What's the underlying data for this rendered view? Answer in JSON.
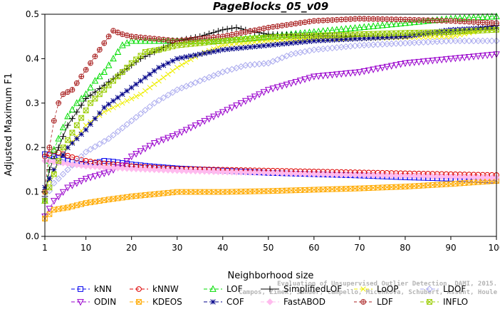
{
  "chart_data": {
    "type": "line",
    "title": "PageBlocks_05_v09",
    "xlabel": "Neighborhood size",
    "ylabel": "Adjusted Maximum F1",
    "xlim": [
      1,
      100
    ],
    "ylim": [
      0,
      0.5
    ],
    "xticks": [
      1,
      10,
      20,
      30,
      40,
      50,
      60,
      70,
      80,
      90,
      100
    ],
    "yticks": [
      "0.0",
      "0.1",
      "0.2",
      "0.3",
      "0.4",
      "0.5"
    ],
    "grid": false,
    "legend_position": "bottom",
    "watermark": [
      "Campos, Zimek, Sander, Campello, Micenkova, Schubert, Assent, Houle",
      "Evaluation of Unsupervised Outlier Detection. DAMI, 2015."
    ],
    "series": [
      {
        "name": "kNN",
        "color": "#0000ee",
        "marker": "square",
        "dash": "5,3",
        "points": [
          [
            1,
            0.185
          ],
          [
            3,
            0.18
          ],
          [
            5,
            0.172
          ],
          [
            8,
            0.165
          ],
          [
            10,
            0.162
          ],
          [
            12,
            0.165
          ],
          [
            14,
            0.17
          ],
          [
            16,
            0.168
          ],
          [
            20,
            0.162
          ],
          [
            25,
            0.157
          ],
          [
            30,
            0.153
          ],
          [
            40,
            0.148
          ],
          [
            50,
            0.143
          ],
          [
            60,
            0.14
          ],
          [
            70,
            0.137
          ],
          [
            80,
            0.133
          ],
          [
            90,
            0.13
          ],
          [
            100,
            0.125
          ]
        ]
      },
      {
        "name": "kNNW",
        "color": "#dd0000",
        "marker": "circle",
        "dash": "5,3",
        "points": [
          [
            1,
            0.18
          ],
          [
            3,
            0.192
          ],
          [
            5,
            0.185
          ],
          [
            8,
            0.175
          ],
          [
            10,
            0.17
          ],
          [
            13,
            0.165
          ],
          [
            16,
            0.162
          ],
          [
            20,
            0.158
          ],
          [
            25,
            0.155
          ],
          [
            30,
            0.152
          ],
          [
            40,
            0.15
          ],
          [
            50,
            0.148
          ],
          [
            60,
            0.146
          ],
          [
            70,
            0.144
          ],
          [
            80,
            0.142
          ],
          [
            90,
            0.14
          ],
          [
            100,
            0.138
          ]
        ]
      },
      {
        "name": "LOF",
        "color": "#00dd00",
        "marker": "triangle",
        "dash": "5,3",
        "points": [
          [
            1,
            0.08
          ],
          [
            2,
            0.17
          ],
          [
            4,
            0.22
          ],
          [
            6,
            0.27
          ],
          [
            8,
            0.3
          ],
          [
            10,
            0.32
          ],
          [
            12,
            0.35
          ],
          [
            14,
            0.37
          ],
          [
            16,
            0.4
          ],
          [
            18,
            0.43
          ],
          [
            20,
            0.44
          ],
          [
            25,
            0.44
          ],
          [
            30,
            0.44
          ],
          [
            40,
            0.44
          ],
          [
            50,
            0.45
          ],
          [
            60,
            0.46
          ],
          [
            70,
            0.47
          ],
          [
            80,
            0.48
          ],
          [
            90,
            0.49
          ],
          [
            100,
            0.495
          ]
        ]
      },
      {
        "name": "SimplifiedLOF",
        "color": "#000000",
        "marker": "plus",
        "dash": "",
        "points": [
          [
            1,
            0.09
          ],
          [
            2,
            0.15
          ],
          [
            4,
            0.2
          ],
          [
            6,
            0.25
          ],
          [
            8,
            0.28
          ],
          [
            10,
            0.31
          ],
          [
            14,
            0.34
          ],
          [
            18,
            0.37
          ],
          [
            22,
            0.4
          ],
          [
            26,
            0.42
          ],
          [
            30,
            0.44
          ],
          [
            35,
            0.45
          ],
          [
            40,
            0.465
          ],
          [
            43,
            0.47
          ],
          [
            46,
            0.462
          ],
          [
            50,
            0.455
          ],
          [
            60,
            0.452
          ],
          [
            70,
            0.45
          ],
          [
            80,
            0.452
          ],
          [
            90,
            0.46
          ],
          [
            100,
            0.475
          ]
        ]
      },
      {
        "name": "LoOP",
        "color": "#eeee00",
        "marker": "x",
        "dash": "5,3",
        "points": [
          [
            1,
            0.1
          ],
          [
            3,
            0.15
          ],
          [
            6,
            0.2
          ],
          [
            10,
            0.25
          ],
          [
            14,
            0.28
          ],
          [
            18,
            0.3
          ],
          [
            22,
            0.32
          ],
          [
            26,
            0.35
          ],
          [
            30,
            0.38
          ],
          [
            35,
            0.41
          ],
          [
            40,
            0.43
          ],
          [
            50,
            0.44
          ],
          [
            60,
            0.445
          ],
          [
            70,
            0.445
          ],
          [
            80,
            0.448
          ],
          [
            90,
            0.45
          ],
          [
            100,
            0.47
          ]
        ]
      },
      {
        "name": "LDOF",
        "color": "#aaaaee",
        "marker": "diamond",
        "dash": "5,3",
        "points": [
          [
            1,
            0.085
          ],
          [
            3,
            0.12
          ],
          [
            6,
            0.15
          ],
          [
            10,
            0.19
          ],
          [
            15,
            0.22
          ],
          [
            20,
            0.26
          ],
          [
            25,
            0.3
          ],
          [
            30,
            0.33
          ],
          [
            35,
            0.35
          ],
          [
            40,
            0.37
          ],
          [
            45,
            0.385
          ],
          [
            50,
            0.39
          ],
          [
            55,
            0.41
          ],
          [
            60,
            0.42
          ],
          [
            70,
            0.43
          ],
          [
            80,
            0.435
          ],
          [
            90,
            0.44
          ],
          [
            100,
            0.44
          ]
        ]
      },
      {
        "name": "ODIN",
        "color": "#9900cc",
        "marker": "triangle-down",
        "dash": "5,3",
        "points": [
          [
            1,
            0.045
          ],
          [
            3,
            0.08
          ],
          [
            6,
            0.11
          ],
          [
            10,
            0.13
          ],
          [
            15,
            0.145
          ],
          [
            18,
            0.16
          ],
          [
            20,
            0.18
          ],
          [
            25,
            0.21
          ],
          [
            30,
            0.23
          ],
          [
            35,
            0.255
          ],
          [
            40,
            0.28
          ],
          [
            45,
            0.305
          ],
          [
            50,
            0.33
          ],
          [
            55,
            0.345
          ],
          [
            60,
            0.36
          ],
          [
            70,
            0.37
          ],
          [
            80,
            0.39
          ],
          [
            90,
            0.4
          ],
          [
            100,
            0.41
          ]
        ]
      },
      {
        "name": "KDEOS",
        "color": "#ffaa00",
        "marker": "square-x",
        "dash": "5,3",
        "points": [
          [
            1,
            0.04
          ],
          [
            3,
            0.06
          ],
          [
            6,
            0.065
          ],
          [
            10,
            0.075
          ],
          [
            15,
            0.083
          ],
          [
            20,
            0.09
          ],
          [
            25,
            0.095
          ],
          [
            30,
            0.1
          ],
          [
            40,
            0.1
          ],
          [
            50,
            0.102
          ],
          [
            60,
            0.105
          ],
          [
            70,
            0.108
          ],
          [
            80,
            0.112
          ],
          [
            90,
            0.118
          ],
          [
            100,
            0.125
          ]
        ]
      },
      {
        "name": "COF",
        "color": "#000088",
        "marker": "star",
        "dash": "5,3",
        "points": [
          [
            1,
            0.11
          ],
          [
            3,
            0.15
          ],
          [
            6,
            0.2
          ],
          [
            10,
            0.24
          ],
          [
            14,
            0.29
          ],
          [
            18,
            0.32
          ],
          [
            22,
            0.35
          ],
          [
            26,
            0.38
          ],
          [
            30,
            0.4
          ],
          [
            35,
            0.41
          ],
          [
            40,
            0.42
          ],
          [
            50,
            0.43
          ],
          [
            60,
            0.44
          ],
          [
            70,
            0.445
          ],
          [
            80,
            0.45
          ],
          [
            90,
            0.465
          ],
          [
            100,
            0.47
          ]
        ]
      },
      {
        "name": "FastABOD",
        "color": "#ffbbee",
        "marker": "diamond-filled",
        "dash": "5,3",
        "points": [
          [
            1,
            0.17
          ],
          [
            5,
            0.165
          ],
          [
            10,
            0.158
          ],
          [
            15,
            0.155
          ],
          [
            20,
            0.152
          ],
          [
            30,
            0.148
          ],
          [
            40,
            0.145
          ],
          [
            50,
            0.143
          ],
          [
            60,
            0.14
          ],
          [
            70,
            0.138
          ],
          [
            80,
            0.136
          ],
          [
            90,
            0.134
          ],
          [
            100,
            0.132
          ]
        ]
      },
      {
        "name": "LDF",
        "color": "#aa2222",
        "marker": "circle-plus",
        "dash": "4,3",
        "points": [
          [
            1,
            0.1
          ],
          [
            2,
            0.2
          ],
          [
            3,
            0.26
          ],
          [
            4,
            0.3
          ],
          [
            5,
            0.32
          ],
          [
            7,
            0.33
          ],
          [
            9,
            0.36
          ],
          [
            11,
            0.39
          ],
          [
            13,
            0.42
          ],
          [
            15,
            0.45
          ],
          [
            16,
            0.463
          ],
          [
            18,
            0.455
          ],
          [
            20,
            0.45
          ],
          [
            25,
            0.445
          ],
          [
            30,
            0.44
          ],
          [
            40,
            0.45
          ],
          [
            50,
            0.47
          ],
          [
            60,
            0.485
          ],
          [
            70,
            0.49
          ],
          [
            80,
            0.488
          ],
          [
            90,
            0.485
          ],
          [
            100,
            0.48
          ]
        ]
      },
      {
        "name": "INFLO",
        "color": "#99cc00",
        "marker": "square-x",
        "dash": "5,3",
        "points": [
          [
            1,
            0.08
          ],
          [
            3,
            0.14
          ],
          [
            5,
            0.2
          ],
          [
            8,
            0.25
          ],
          [
            11,
            0.3
          ],
          [
            14,
            0.33
          ],
          [
            17,
            0.36
          ],
          [
            20,
            0.39
          ],
          [
            23,
            0.415
          ],
          [
            26,
            0.42
          ],
          [
            30,
            0.43
          ],
          [
            40,
            0.44
          ],
          [
            50,
            0.448
          ],
          [
            60,
            0.452
          ],
          [
            70,
            0.455
          ],
          [
            80,
            0.458
          ],
          [
            90,
            0.46
          ],
          [
            100,
            0.465
          ]
        ]
      }
    ]
  }
}
